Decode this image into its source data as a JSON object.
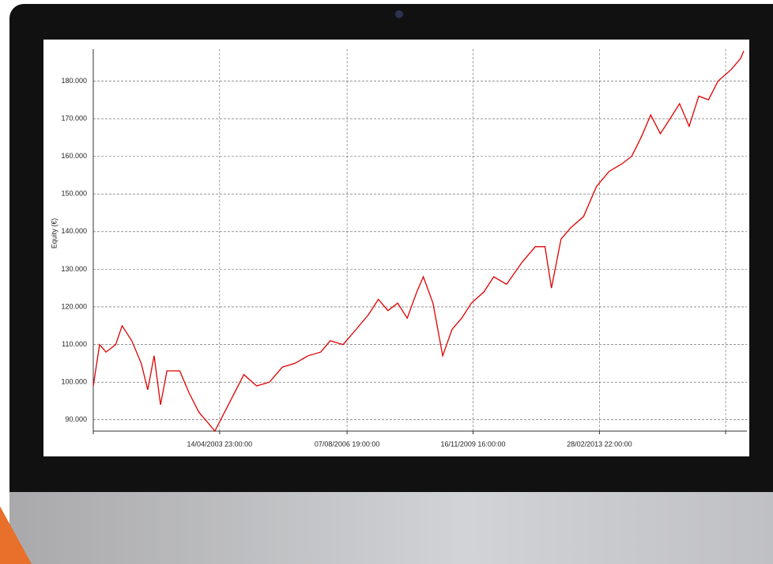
{
  "chart_data": {
    "type": "line",
    "y_label": "Equity (€)",
    "x": [
      "2000-01-01",
      "2000-03-01",
      "2000-05-01",
      "2000-08-01",
      "2000-10-01",
      "2001-01-01",
      "2001-04-01",
      "2001-06-01",
      "2001-08-01",
      "2001-10-01",
      "2001-12-01",
      "2002-04-01",
      "2002-07-01",
      "2002-10-01",
      "2003-01-01",
      "2003-03-01",
      "2003-06-01",
      "2003-09-01",
      "2003-12-01",
      "2004-04-01",
      "2004-08-01",
      "2004-12-01",
      "2005-04-01",
      "2005-08-01",
      "2005-12-01",
      "2006-03-01",
      "2006-07-01",
      "2006-11-01",
      "2007-03-01",
      "2007-06-01",
      "2007-09-01",
      "2007-12-01",
      "2008-03-01",
      "2008-06-01",
      "2008-08-01",
      "2008-11-01",
      "2009-02-01",
      "2009-05-01",
      "2009-08-01",
      "2009-11-01",
      "2010-03-01",
      "2010-06-01",
      "2010-10-01",
      "2011-03-01",
      "2011-07-01",
      "2011-10-01",
      "2011-12-01",
      "2012-03-01",
      "2012-06-01",
      "2012-10-01",
      "2013-02-01",
      "2013-06-01",
      "2013-10-01",
      "2014-01-01",
      "2014-04-01",
      "2014-07-01",
      "2014-10-01",
      "2015-01-01",
      "2015-04-01",
      "2015-07-01",
      "2015-10-01",
      "2016-01-01",
      "2016-04-01",
      "2016-08-01",
      "2016-11-01",
      "2016-12-01"
    ],
    "series": [
      {
        "name": "Equity",
        "color": "#e00000",
        "values": [
          99000,
          110000,
          108000,
          110000,
          115000,
          111000,
          105000,
          98000,
          107000,
          94000,
          103000,
          103000,
          97000,
          92000,
          89000,
          87000,
          92000,
          97000,
          102000,
          99000,
          100000,
          104000,
          105000,
          107000,
          108000,
          111000,
          110000,
          114000,
          118000,
          122000,
          119000,
          121000,
          117000,
          124000,
          128000,
          121000,
          107000,
          114000,
          117000,
          121000,
          124000,
          128000,
          126000,
          132000,
          136000,
          136000,
          125000,
          138000,
          141000,
          144000,
          152000,
          156000,
          158000,
          160000,
          165000,
          171000,
          166000,
          170000,
          174000,
          168000,
          176000,
          175000,
          180000,
          183000,
          186000,
          188000
        ]
      }
    ],
    "xlim": [
      "2000-01-01T00:00:00",
      "2016-12-31T00:00:00"
    ],
    "xticks": [
      {
        "value": "2003-04-14T23:00:00",
        "label": "14/04/2003 23:00:00"
      },
      {
        "value": "2006-08-07T19:00:00",
        "label": "07/08/2006 19:00:00"
      },
      {
        "value": "2009-11-16T16:00:00",
        "label": "16/11/2009 16:00:00"
      },
      {
        "value": "2013-02-28T22:00:00",
        "label": "28/02/2013 22:00:00"
      },
      {
        "value": "2016-06-12T00:00:00",
        "label": null
      }
    ],
    "ylim": [
      87000,
      188500
    ],
    "yticks": [
      {
        "value": 90000,
        "label": "90.000"
      },
      {
        "value": 100000,
        "label": "100.000"
      },
      {
        "value": 110000,
        "label": "110.000"
      },
      {
        "value": 120000,
        "label": "120.000"
      },
      {
        "value": 130000,
        "label": "130.000"
      },
      {
        "value": 140000,
        "label": "140.000"
      },
      {
        "value": 150000,
        "label": "150.000"
      },
      {
        "value": 160000,
        "label": "160.000"
      },
      {
        "value": 170000,
        "label": "170.000"
      },
      {
        "value": 180000,
        "label": "180.000"
      }
    ],
    "grid": true
  }
}
